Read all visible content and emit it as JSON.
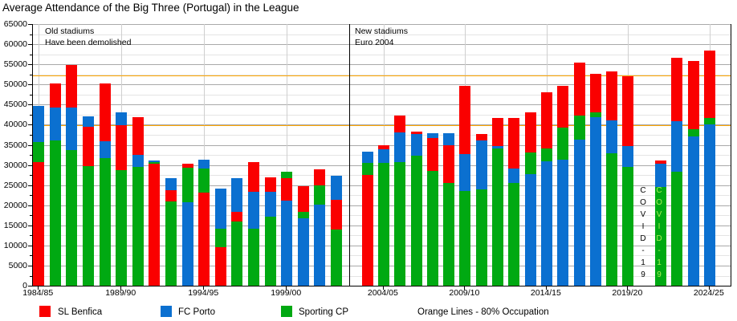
{
  "title": "Average Attendance of the Big Three (Portugal) in the League",
  "annotations": {
    "old_stadiums": "Old stadiums\nHave been demolished",
    "new_stadiums": "New stadiums\nEuro 2004",
    "covid": "COVID-19"
  },
  "legend": {
    "benfica": "SL Benfica",
    "porto": "FC Porto",
    "sporting": "Sporting CP",
    "orange_note": "Orange Lines - 80% Occupation"
  },
  "colors": {
    "benfica": "#fa0000",
    "porto": "#0b70d0",
    "sporting": "#00a912",
    "orange": "#ffa500",
    "covid_text": "#000000",
    "covid_text_alt": "#aaee55"
  },
  "chart_data": {
    "type": "bar",
    "style": "overlapping-bars-smallest-in-front",
    "ylim": [
      0,
      65000
    ],
    "ytick_step": 5000,
    "ygrid_minor_step": 2500,
    "xticks": [
      "1984/85",
      "1989/90",
      "1994/95",
      "1999/00",
      "2004/05",
      "2009/10",
      "2014/15",
      "2019/20",
      "2024/25"
    ],
    "orange_lines": [
      52300,
      39900
    ],
    "covid_season": "2020/21",
    "series_names": [
      "SL Benfica",
      "FC Porto",
      "Sporting CP"
    ],
    "seasons": [
      {
        "season": "1984/85",
        "benfica": 30700,
        "porto": 44700,
        "sporting": 35700
      },
      {
        "season": "1985/86",
        "benfica": 50300,
        "porto": 44300,
        "sporting": 36000
      },
      {
        "season": "1986/87",
        "benfica": 54800,
        "porto": 44300,
        "sporting": 33700
      },
      {
        "season": "1987/88",
        "benfica": 39500,
        "porto": 42000,
        "sporting": 29700
      },
      {
        "season": "1988/89",
        "benfica": 50300,
        "porto": 35900,
        "sporting": 31800
      },
      {
        "season": "1989/90",
        "benfica": 39800,
        "porto": 43100,
        "sporting": 28800
      },
      {
        "season": "1990/91",
        "benfica": 41800,
        "porto": 32500,
        "sporting": 29500
      },
      {
        "season": "1991/92",
        "benfica": 30300,
        "porto": 31200,
        "sporting": 30700
      },
      {
        "season": "1992/93",
        "benfica": 23800,
        "porto": 26700,
        "sporting": 21000
      },
      {
        "season": "1993/94",
        "benfica": 30300,
        "porto": 20800,
        "sporting": 29300
      },
      {
        "season": "1994/95",
        "benfica": 23100,
        "porto": 31300,
        "sporting": 29100
      },
      {
        "season": "1995/96",
        "benfica": 9600,
        "porto": 24100,
        "sporting": 14100
      },
      {
        "season": "1996/97",
        "benfica": 18300,
        "porto": 26800,
        "sporting": 16000
      },
      {
        "season": "1997/98",
        "benfica": 30800,
        "porto": 23300,
        "sporting": 14100
      },
      {
        "season": "1998/99",
        "benfica": 27000,
        "porto": 23300,
        "sporting": 17100
      },
      {
        "season": "1999/00",
        "benfica": 26700,
        "porto": 21100,
        "sporting": 28300
      },
      {
        "season": "2000/01",
        "benfica": 24800,
        "porto": 16800,
        "sporting": 18300
      },
      {
        "season": "2001/02",
        "benfica": 29000,
        "porto": 20100,
        "sporting": 25000
      },
      {
        "season": "2002/03",
        "benfica": 21300,
        "porto": 27300,
        "sporting": 14000
      },
      {
        "season": "2003/04",
        "benfica": 27500,
        "porto": 33300,
        "sporting": 30500
      },
      {
        "season": "2004/05",
        "benfica": 35000,
        "porto": 34000,
        "sporting": 30500
      },
      {
        "season": "2005/06",
        "benfica": 42300,
        "porto": 38100,
        "sporting": 30700
      },
      {
        "season": "2006/07",
        "benfica": 38300,
        "porto": 37600,
        "sporting": 32300
      },
      {
        "season": "2007/08",
        "benfica": 36700,
        "porto": 37900,
        "sporting": 28500
      },
      {
        "season": "2008/09",
        "benfica": 35000,
        "porto": 37900,
        "sporting": 25600
      },
      {
        "season": "2009/10",
        "benfica": 49600,
        "porto": 32700,
        "sporting": 23600
      },
      {
        "season": "2010/11",
        "benfica": 37600,
        "porto": 36100,
        "sporting": 24000
      },
      {
        "season": "2011/12",
        "benfica": 41600,
        "porto": 34700,
        "sporting": 34100
      },
      {
        "season": "2012/13",
        "benfica": 41600,
        "porto": 29100,
        "sporting": 25600
      },
      {
        "season": "2013/14",
        "benfica": 43000,
        "porto": 27800,
        "sporting": 33100
      },
      {
        "season": "2014/15",
        "benfica": 48000,
        "porto": 30900,
        "sporting": 34100
      },
      {
        "season": "2015/16",
        "benfica": 49600,
        "porto": 31300,
        "sporting": 39300
      },
      {
        "season": "2016/17",
        "benfica": 55500,
        "porto": 36300,
        "sporting": 42300
      },
      {
        "season": "2017/18",
        "benfica": 52700,
        "porto": 41800,
        "sporting": 43100
      },
      {
        "season": "2018/19",
        "benfica": 53300,
        "porto": 41100,
        "sporting": 33000
      },
      {
        "season": "2019/20",
        "benfica": 52000,
        "porto": 34700,
        "sporting": 29600
      },
      {
        "season": "2020/21",
        "benfica": null,
        "porto": null,
        "sporting": null
      },
      {
        "season": "2021/22",
        "benfica": 31100,
        "porto": 30300,
        "sporting": 24500
      },
      {
        "season": "2022/23",
        "benfica": 56600,
        "porto": 40800,
        "sporting": 28300
      },
      {
        "season": "2023/24",
        "benfica": 55800,
        "porto": 37000,
        "sporting": 38800
      },
      {
        "season": "2024/25",
        "benfica": 58500,
        "porto": 40100,
        "sporting": 41600
      }
    ]
  }
}
